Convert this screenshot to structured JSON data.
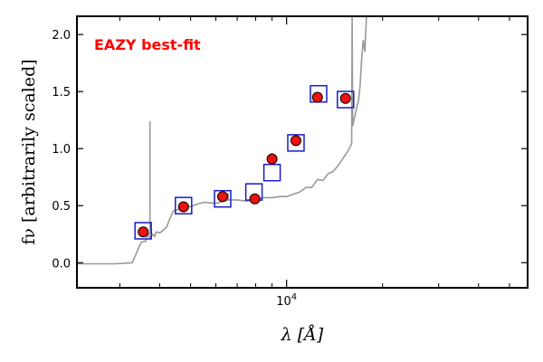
{
  "chart_data": {
    "type": "scatter",
    "title": "",
    "annotation": "EAZY best-fit",
    "xlabel": "λ [Å]",
    "ylabel": "fν [arbitrarily scaled]",
    "xscale": "log",
    "xlim": [
      2200,
      57000
    ],
    "ylim": [
      -0.22,
      2.16
    ],
    "x_major_tick_labels": [
      "10^4"
    ],
    "y_ticks": [
      0.0,
      0.5,
      1.0,
      1.5,
      2.0
    ],
    "y_tick_labels": [
      "0.0",
      "0.5",
      "1.0",
      "1.5",
      "2.0"
    ],
    "grid": false,
    "colors": {
      "template": "#999999",
      "observed_fill": "#ee1111",
      "model_box": "#1a1acc",
      "annotation": "#ff0000"
    },
    "series": [
      {
        "kind": "template_spectrum",
        "x": [
          2900,
          3280,
          3500,
          3620,
          3680,
          3720,
          3800,
          3860,
          3900,
          4000,
          4200,
          4400,
          4600,
          4860,
          5000,
          5200,
          5500,
          6000,
          6563,
          7000,
          7500,
          8000,
          8500,
          9000,
          9500,
          10000,
          10500,
          11000,
          11500,
          12000,
          12500,
          13000,
          13500,
          14000,
          14500,
          15000,
          15500,
          15800,
          16000,
          16050,
          16120,
          16300,
          16500,
          16800,
          17000,
          17200,
          17400,
          17600,
          17800,
          18000
        ],
        "y": [
          -0.01,
          0.0,
          0.18,
          0.19,
          0.26,
          0.22,
          0.25,
          0.23,
          0.27,
          0.26,
          0.31,
          0.45,
          0.47,
          0.5,
          0.49,
          0.51,
          0.53,
          0.52,
          0.55,
          0.55,
          0.54,
          0.56,
          0.57,
          0.57,
          0.58,
          0.58,
          0.6,
          0.62,
          0.66,
          0.66,
          0.73,
          0.72,
          0.78,
          0.8,
          0.85,
          0.91,
          0.97,
          1.01,
          1.05,
          2.16,
          1.2,
          1.26,
          1.33,
          1.42,
          1.55,
          1.8,
          1.95,
          1.85,
          2.16,
          2.16
        ]
      },
      {
        "kind": "template_emission_lines",
        "lines": [
          {
            "x": 3727,
            "y": 1.24
          },
          {
            "x": 6563,
            "y": 0.61
          }
        ]
      },
      {
        "kind": "model_photometry",
        "x": [
          3550,
          4750,
          6300,
          7900,
          9000,
          10700,
          12600,
          15300
        ],
        "y": [
          0.28,
          0.5,
          0.56,
          0.62,
          0.79,
          1.05,
          1.48,
          1.43
        ]
      },
      {
        "kind": "observed_photometry",
        "x": [
          3550,
          4750,
          6300,
          7950,
          9000,
          10700,
          12500,
          15300
        ],
        "y": [
          0.27,
          0.49,
          0.58,
          0.56,
          0.91,
          1.07,
          1.45,
          1.44
        ],
        "yerr": [
          0.02,
          0.02,
          0.03,
          0.02,
          0.05,
          0.03,
          0.04,
          0.04
        ]
      }
    ]
  }
}
